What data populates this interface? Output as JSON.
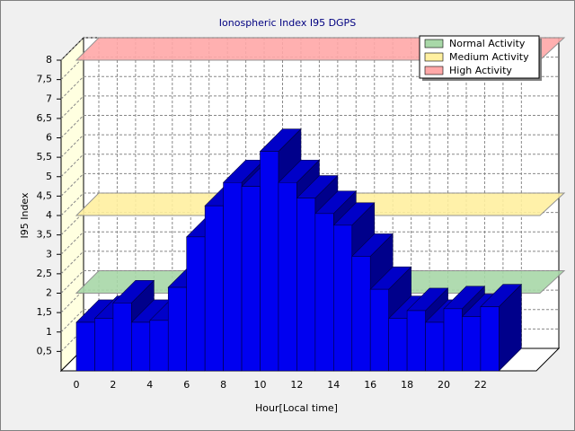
{
  "chart_data": {
    "type": "bar3d",
    "title": "Ionospheric Index I95 DGPS",
    "xlabel": "Hour[Local time]",
    "ylabel": "I95 Index",
    "categories": [
      "0",
      null,
      "2",
      null,
      "4",
      null,
      "6",
      null,
      "8",
      null,
      "10",
      null,
      "12",
      null,
      "14",
      null,
      "16",
      null,
      "18",
      null,
      "20",
      null,
      "22"
    ],
    "values": [
      1.25,
      1.35,
      1.75,
      1.25,
      1.3,
      2.15,
      3.45,
      4.25,
      4.85,
      4.75,
      5.65,
      4.85,
      4.45,
      4.05,
      3.75,
      2.95,
      2.1,
      1.35,
      1.55,
      1.25,
      1.6,
      1.4,
      1.65
    ],
    "color": "#0000f0",
    "ylim": [
      0,
      8
    ],
    "yticks": [
      {
        "value": 0.5,
        "label": "0,5"
      },
      1,
      {
        "value": 1.5,
        "label": "1,5"
      },
      2,
      {
        "value": 2.5,
        "label": "2,5"
      },
      3,
      {
        "value": 3.5,
        "label": "3,5"
      },
      4,
      {
        "value": 4.5,
        "label": "4,5"
      },
      5,
      {
        "value": 5.5,
        "label": "5,5"
      },
      6,
      {
        "value": 6.5,
        "label": "6,5"
      },
      7,
      {
        "value": 7.5,
        "label": "7,5"
      },
      8
    ],
    "grid": true,
    "legend": "top-right",
    "bands": [
      {
        "name": "Normal Activity",
        "color": "#a8d8a8",
        "value": 2
      },
      {
        "name": "Medium Activity",
        "color": "#fff0a0",
        "value": 4
      },
      {
        "name": "High Activity",
        "color": "#ffa8a8",
        "value": 8
      }
    ]
  }
}
